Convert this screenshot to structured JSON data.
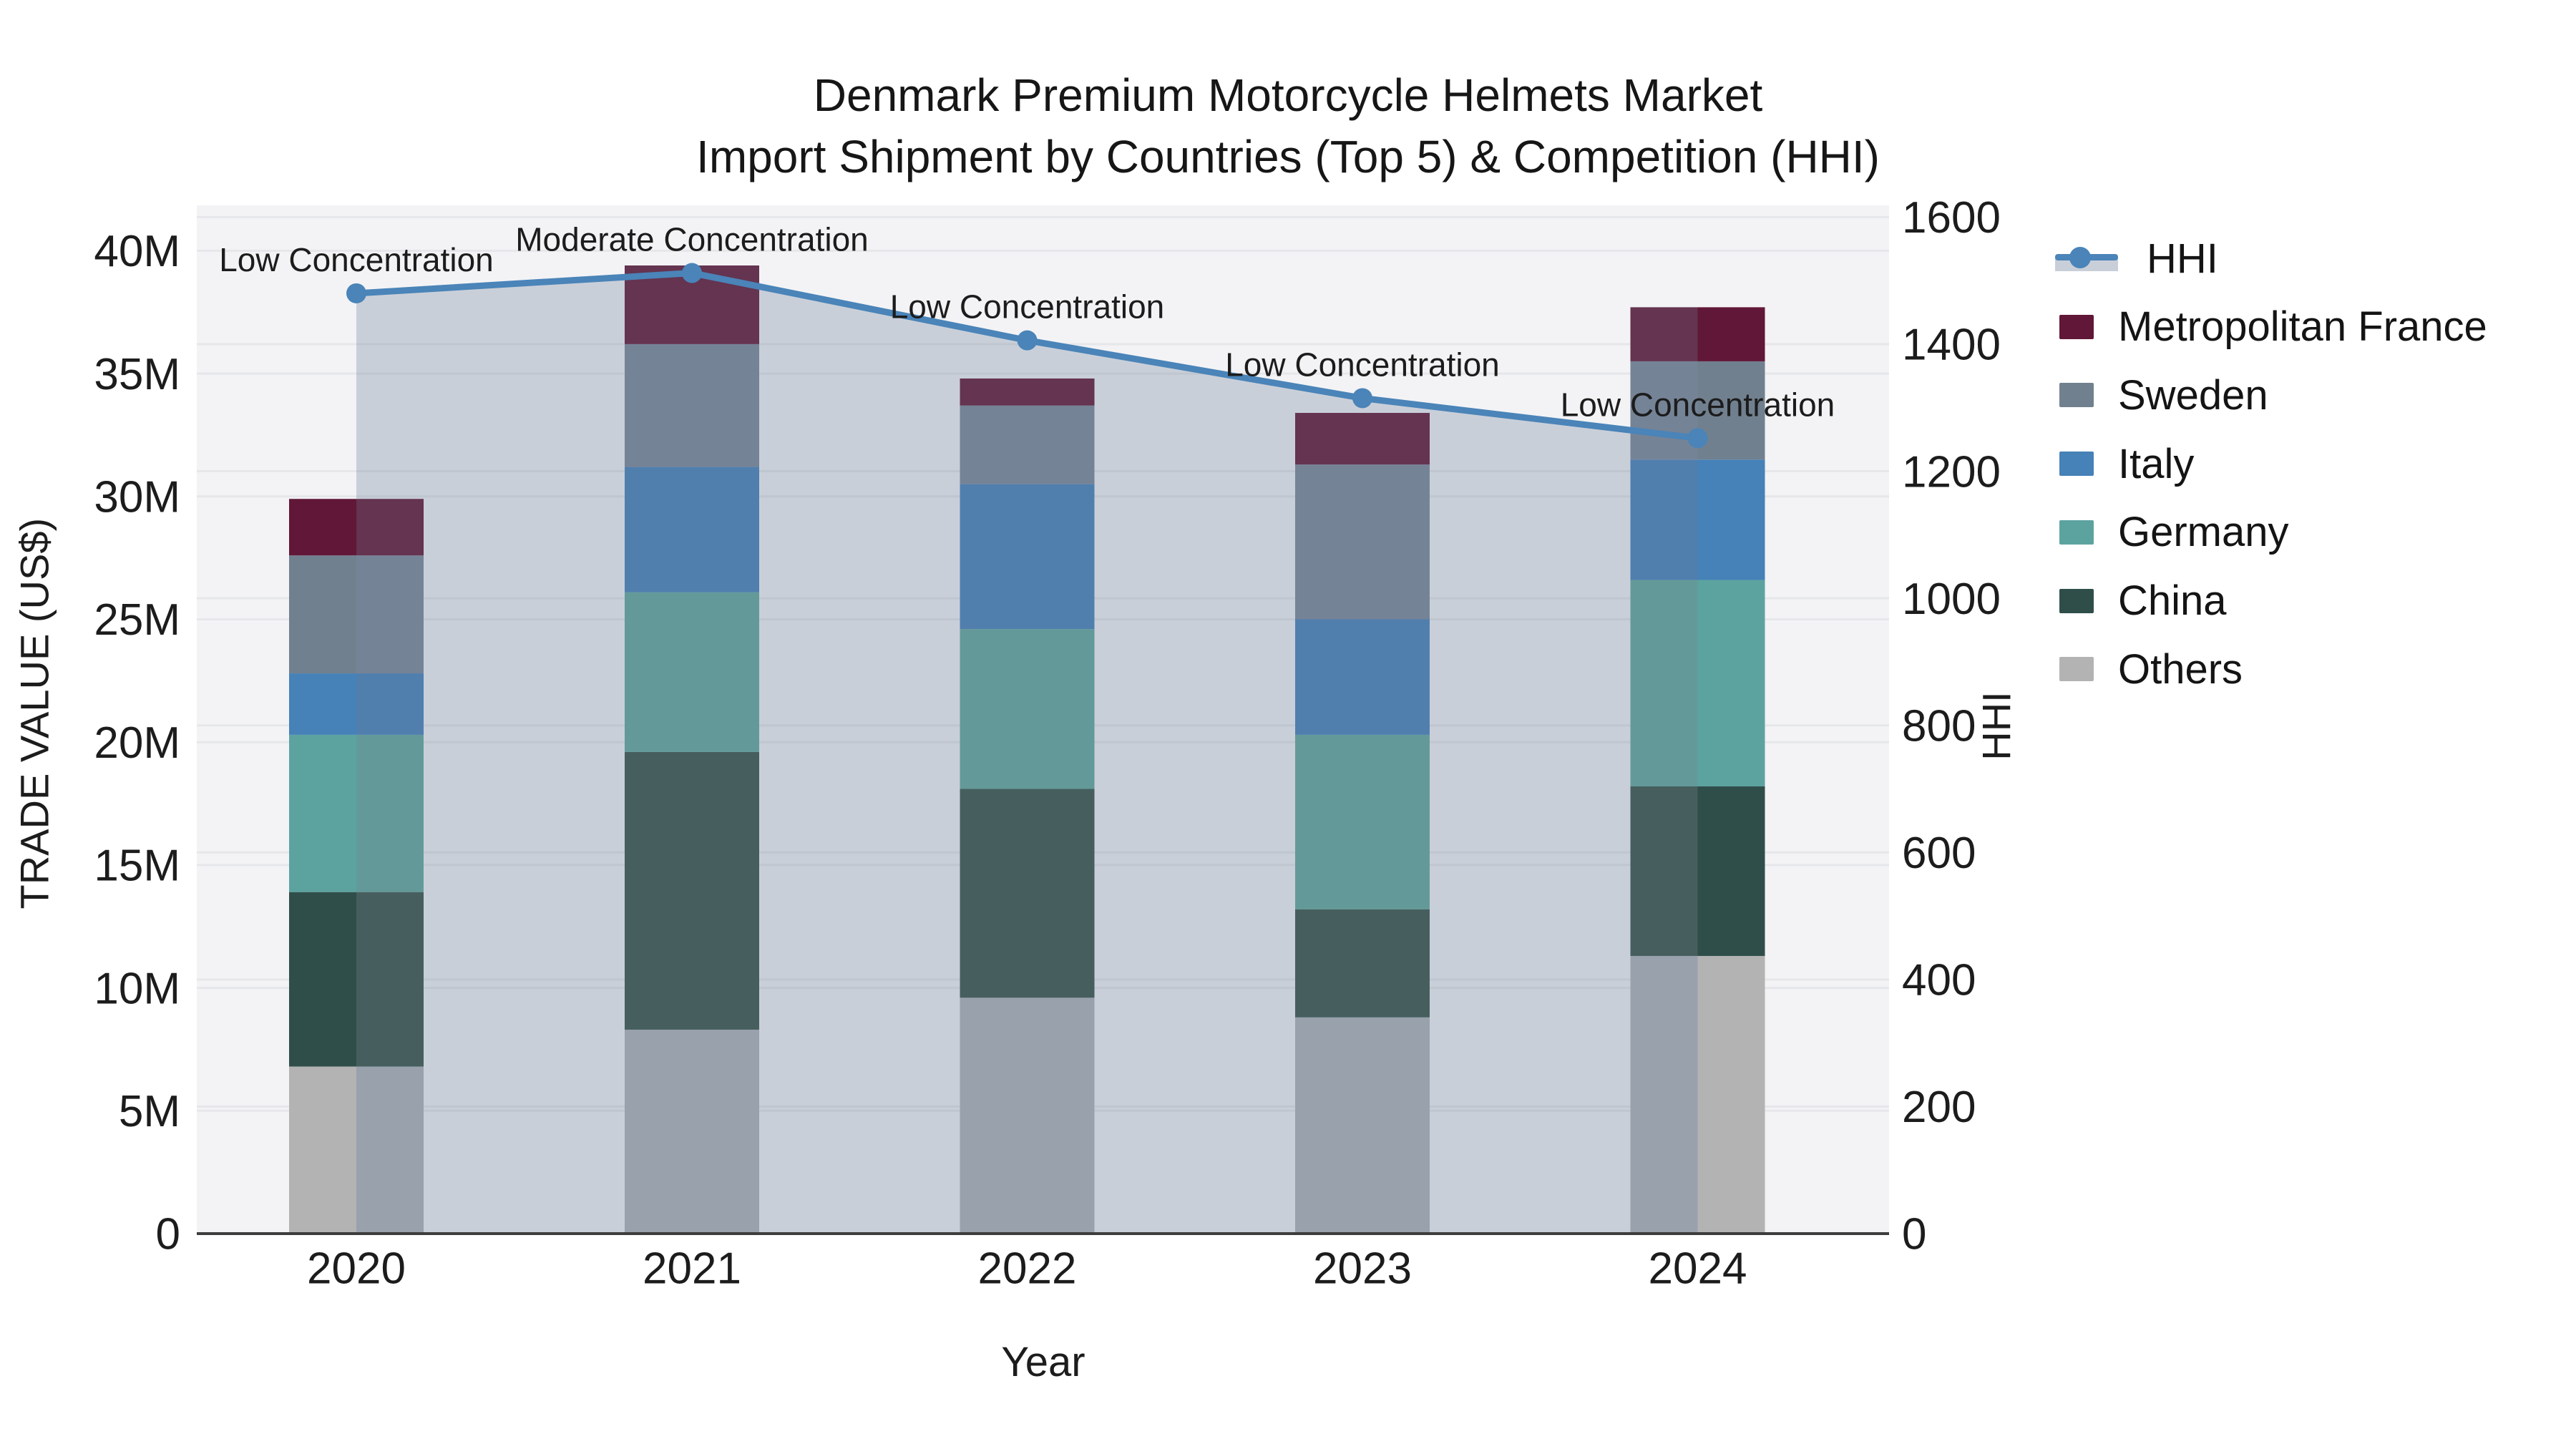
{
  "title": {
    "line1": "Denmark Premium Motorcycle Helmets Market",
    "line2": "Import Shipment by Countries (Top 5) & Competition (HHI)"
  },
  "axes": {
    "x": {
      "label": "Year",
      "categories": [
        "2020",
        "2021",
        "2022",
        "2023",
        "2024"
      ]
    },
    "y_left": {
      "label": "TRADE VALUE (US$)",
      "tick_values": [
        0,
        5,
        10,
        15,
        20,
        25,
        30,
        35,
        40
      ],
      "tick_labels": [
        "0",
        "5M",
        "10M",
        "15M",
        "20M",
        "25M",
        "30M",
        "35M",
        "40M"
      ],
      "range": [
        0,
        40
      ],
      "unit": "million US$"
    },
    "y_right": {
      "label": "HHI",
      "tick_values": [
        0,
        200,
        400,
        600,
        800,
        1000,
        1200,
        1400,
        1600
      ],
      "tick_labels": [
        "0",
        "200",
        "400",
        "600",
        "800",
        "1000",
        "1200",
        "1400",
        "1600"
      ],
      "range": [
        0,
        1600
      ]
    }
  },
  "chart_data": {
    "type": "bar+line",
    "categories": [
      "2020",
      "2021",
      "2022",
      "2023",
      "2024"
    ],
    "bar_unit": "million US$",
    "stack_order_note": "series listed bottom to top of stack",
    "series": [
      {
        "name": "Others",
        "color": "#B3B3B3",
        "color_shaded": "#99A1AD",
        "values": [
          6.8,
          8.3,
          9.6,
          8.8,
          11.3
        ]
      },
      {
        "name": "China",
        "color": "#2F4E4A",
        "color_shaded": "#465F5E",
        "values": [
          7.1,
          11.3,
          8.5,
          4.4,
          6.9
        ]
      },
      {
        "name": "Germany",
        "color": "#5CA3A0",
        "color_shaded": "#639A99",
        "values": [
          6.4,
          6.5,
          6.5,
          7.1,
          8.4
        ]
      },
      {
        "name": "Italy",
        "color": "#4681B8",
        "color_shaded": "#507FAE",
        "values": [
          2.5,
          5.1,
          5.9,
          4.7,
          4.9
        ]
      },
      {
        "name": "Sweden",
        "color": "#71808E",
        "color_shaded": "#758396",
        "values": [
          4.8,
          5.0,
          3.2,
          6.3,
          4.0
        ]
      },
      {
        "name": "Metropolitan France",
        "color": "#611737",
        "color_shaded": "#643450",
        "values": [
          2.3,
          3.2,
          1.1,
          2.1,
          2.2
        ]
      }
    ],
    "totals": [
      29.9,
      39.4,
      34.8,
      33.4,
      37.7
    ],
    "hhi": {
      "name": "HHI",
      "line_color": "#4A84B8",
      "area_fill_color": "#C9CFD9",
      "values": [
        1480,
        1512,
        1406,
        1315,
        1252
      ]
    },
    "annotations": [
      {
        "x": "2020",
        "text": "Low Concentration"
      },
      {
        "x": "2021",
        "text": "Moderate Concentration"
      },
      {
        "x": "2022",
        "text": "Low Concentration"
      },
      {
        "x": "2023",
        "text": "Low Concentration"
      },
      {
        "x": "2024",
        "text": "Low Concentration"
      }
    ],
    "grid": true,
    "legend_position": "right"
  },
  "legend": {
    "items": [
      {
        "label": "HHI",
        "type": "line",
        "color": "#4A84B8",
        "band": "#C9CFD9"
      },
      {
        "label": "Metropolitan France",
        "type": "swatch",
        "color": "#611737"
      },
      {
        "label": "Sweden",
        "type": "swatch",
        "color": "#71808E"
      },
      {
        "label": "Italy",
        "type": "swatch",
        "color": "#4681B8"
      },
      {
        "label": "Germany",
        "type": "swatch",
        "color": "#5CA3A0"
      },
      {
        "label": "China",
        "type": "swatch",
        "color": "#2F4E4A"
      },
      {
        "label": "Others",
        "type": "swatch",
        "color": "#B3B3B3"
      }
    ]
  },
  "style_colors": {
    "plot_background": "#F3F3F5",
    "gridline": "rgba(70,80,100,0.07)",
    "axis_line": "#3D3D3D",
    "text": "#1C1C1C"
  }
}
